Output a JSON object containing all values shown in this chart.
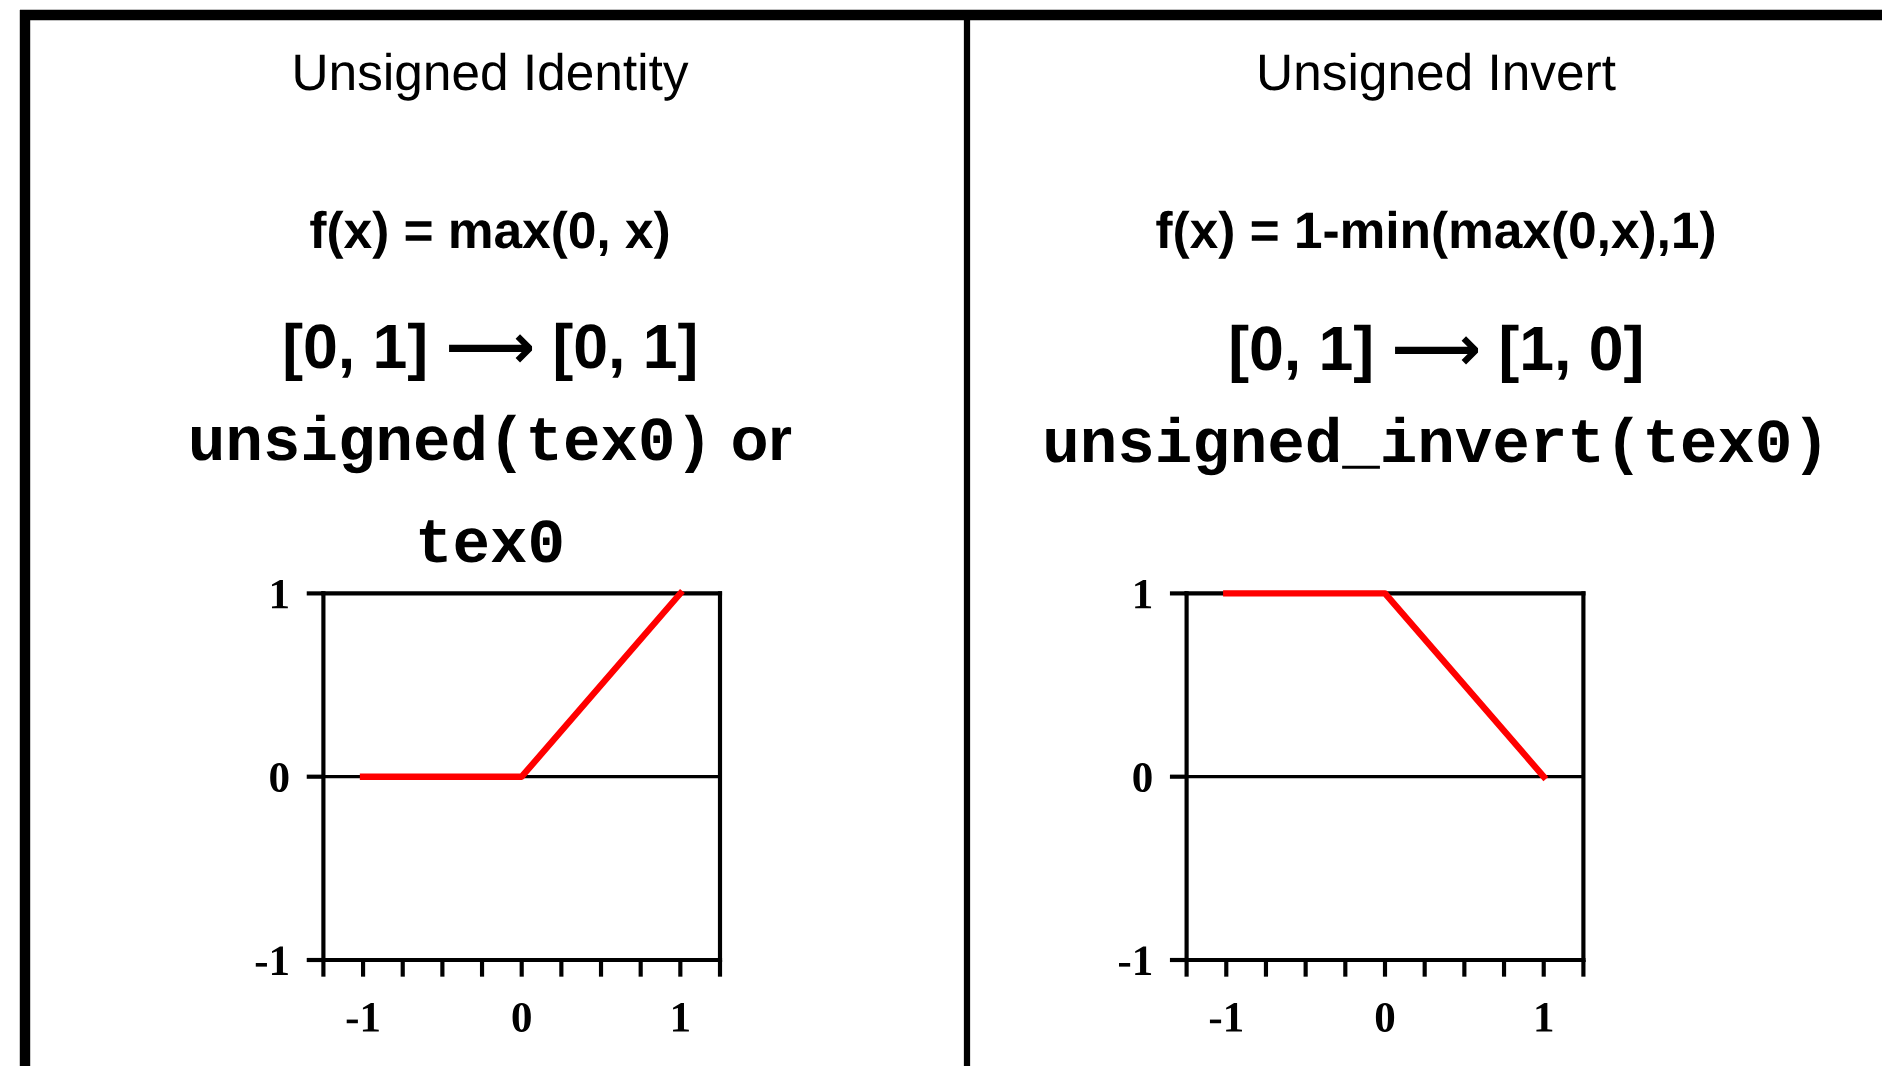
{
  "chart_data": [
    {
      "type": "line",
      "title": "Unsigned Identity",
      "subtitle": "f(x) = max(0, x)",
      "annotations": [
        "[0, 1] ⟶ [0, 1]",
        "unsigned(tex0)",
        "or",
        "tex0"
      ],
      "x": [
        -1,
        0,
        1
      ],
      "series": [
        {
          "color": "#ff0000",
          "values": [
            0,
            0,
            1
          ]
        }
      ],
      "xlim": [
        -1.25,
        1.25
      ],
      "xticks": [
        {
          "value": -1.25,
          "label": null
        },
        -1,
        {
          "value": -0.75,
          "label": null
        },
        {
          "value": -0.5,
          "label": null
        },
        {
          "value": -0.25,
          "label": null
        },
        0,
        {
          "value": 0.25,
          "label": null
        },
        {
          "value": 0.5,
          "label": null
        },
        {
          "value": 0.75,
          "label": null
        },
        1,
        {
          "value": 1.25,
          "label": null
        }
      ],
      "ylim": [
        -1,
        1
      ],
      "yticks": [
        -1,
        0,
        1
      ],
      "ref_lines": [
        {
          "axis": "y",
          "value": 0,
          "color": "#000000"
        }
      ]
    },
    {
      "type": "line",
      "title": "Unsigned Invert",
      "subtitle": "f(x) = 1-min(max(0,x),1)",
      "annotations": [
        "[0, 1] ⟶ [1, 0]",
        "unsigned_invert(tex0)"
      ],
      "x": [
        -1,
        0,
        1
      ],
      "series": [
        {
          "color": "#ff0000",
          "values": [
            1,
            1,
            0
          ]
        }
      ],
      "xlim": [
        -1.25,
        1.25
      ],
      "xticks": [
        {
          "value": -1.25,
          "label": null
        },
        -1,
        {
          "value": -0.75,
          "label": null
        },
        {
          "value": -0.5,
          "label": null
        },
        {
          "value": -0.25,
          "label": null
        },
        0,
        {
          "value": 0.25,
          "label": null
        },
        {
          "value": 0.5,
          "label": null
        },
        {
          "value": 0.75,
          "label": null
        },
        1,
        {
          "value": 1.25,
          "label": null
        }
      ],
      "ylim": [
        -1,
        1
      ],
      "yticks": [
        -1,
        0,
        1
      ],
      "ref_lines": [
        {
          "axis": "y",
          "value": 0,
          "color": "#000000"
        }
      ]
    }
  ]
}
